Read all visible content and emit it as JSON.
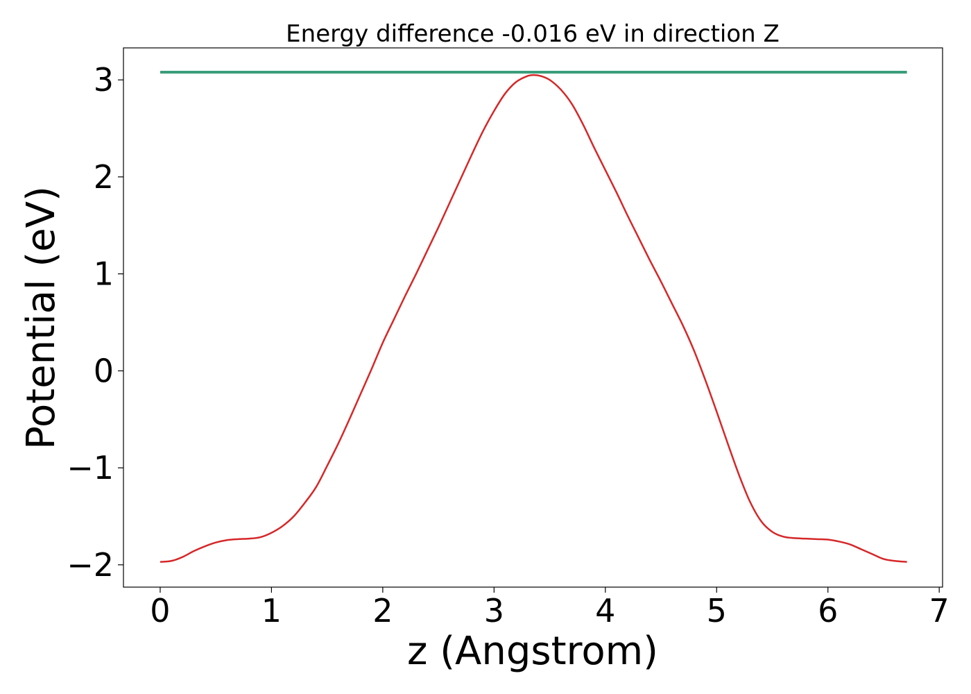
{
  "chart_data": {
    "type": "line",
    "title": "Energy difference -0.016 eV in direction Z",
    "xlabel": "z (Angstrom)",
    "ylabel": "Potential (eV)",
    "xlim": [
      -0.33,
      7.03
    ],
    "ylim": [
      -2.23,
      3.33
    ],
    "xticks": [
      0,
      1,
      2,
      3,
      4,
      5,
      6,
      7
    ],
    "xtick_labels": [
      "0",
      "1",
      "2",
      "3",
      "4",
      "5",
      "6",
      "7"
    ],
    "yticks": [
      -2,
      -1,
      0,
      1,
      2,
      3
    ],
    "ytick_labels": [
      "−2",
      "−1",
      "0",
      "1",
      "2",
      "3"
    ],
    "grid": false,
    "legend": "none",
    "series": [
      {
        "color": "#d62728",
        "x": [
          0,
          0.1,
          0.2,
          0.3,
          0.4,
          0.5,
          0.6,
          0.7,
          0.8,
          0.9,
          1.0,
          1.1,
          1.2,
          1.3,
          1.4,
          1.5,
          1.6,
          1.7,
          1.8,
          1.9,
          2.0,
          2.1,
          2.2,
          2.3,
          2.4,
          2.5,
          2.6,
          2.7,
          2.8,
          2.9,
          3.0,
          3.1,
          3.2,
          3.3,
          3.36,
          3.42,
          3.5,
          3.6,
          3.7,
          3.8,
          3.9,
          4.0,
          4.1,
          4.2,
          4.3,
          4.4,
          4.5,
          4.6,
          4.7,
          4.8,
          4.9,
          5.0,
          5.1,
          5.2,
          5.3,
          5.4,
          5.5,
          5.6,
          5.7,
          5.8,
          5.9,
          6.0,
          6.1,
          6.2,
          6.3,
          6.4,
          6.5,
          6.6,
          6.71
        ],
        "y": [
          -1.97,
          -1.96,
          -1.92,
          -1.86,
          -1.81,
          -1.77,
          -1.745,
          -1.735,
          -1.73,
          -1.715,
          -1.67,
          -1.6,
          -1.5,
          -1.36,
          -1.2,
          -0.98,
          -0.75,
          -0.5,
          -0.24,
          0.02,
          0.29,
          0.53,
          0.77,
          1.0,
          1.24,
          1.48,
          1.73,
          1.98,
          2.23,
          2.47,
          2.68,
          2.86,
          2.98,
          3.04,
          3.05,
          3.04,
          3.0,
          2.9,
          2.75,
          2.54,
          2.3,
          2.07,
          1.84,
          1.6,
          1.37,
          1.14,
          0.92,
          0.69,
          0.46,
          0.2,
          -0.1,
          -0.42,
          -0.75,
          -1.07,
          -1.35,
          -1.55,
          -1.66,
          -1.71,
          -1.725,
          -1.73,
          -1.735,
          -1.74,
          -1.76,
          -1.79,
          -1.84,
          -1.89,
          -1.94,
          -1.96,
          -1.97
        ]
      },
      {
        "color": "#3a9e7a",
        "x": [
          0,
          6.71
        ],
        "y": [
          3.08,
          3.08
        ]
      }
    ]
  }
}
